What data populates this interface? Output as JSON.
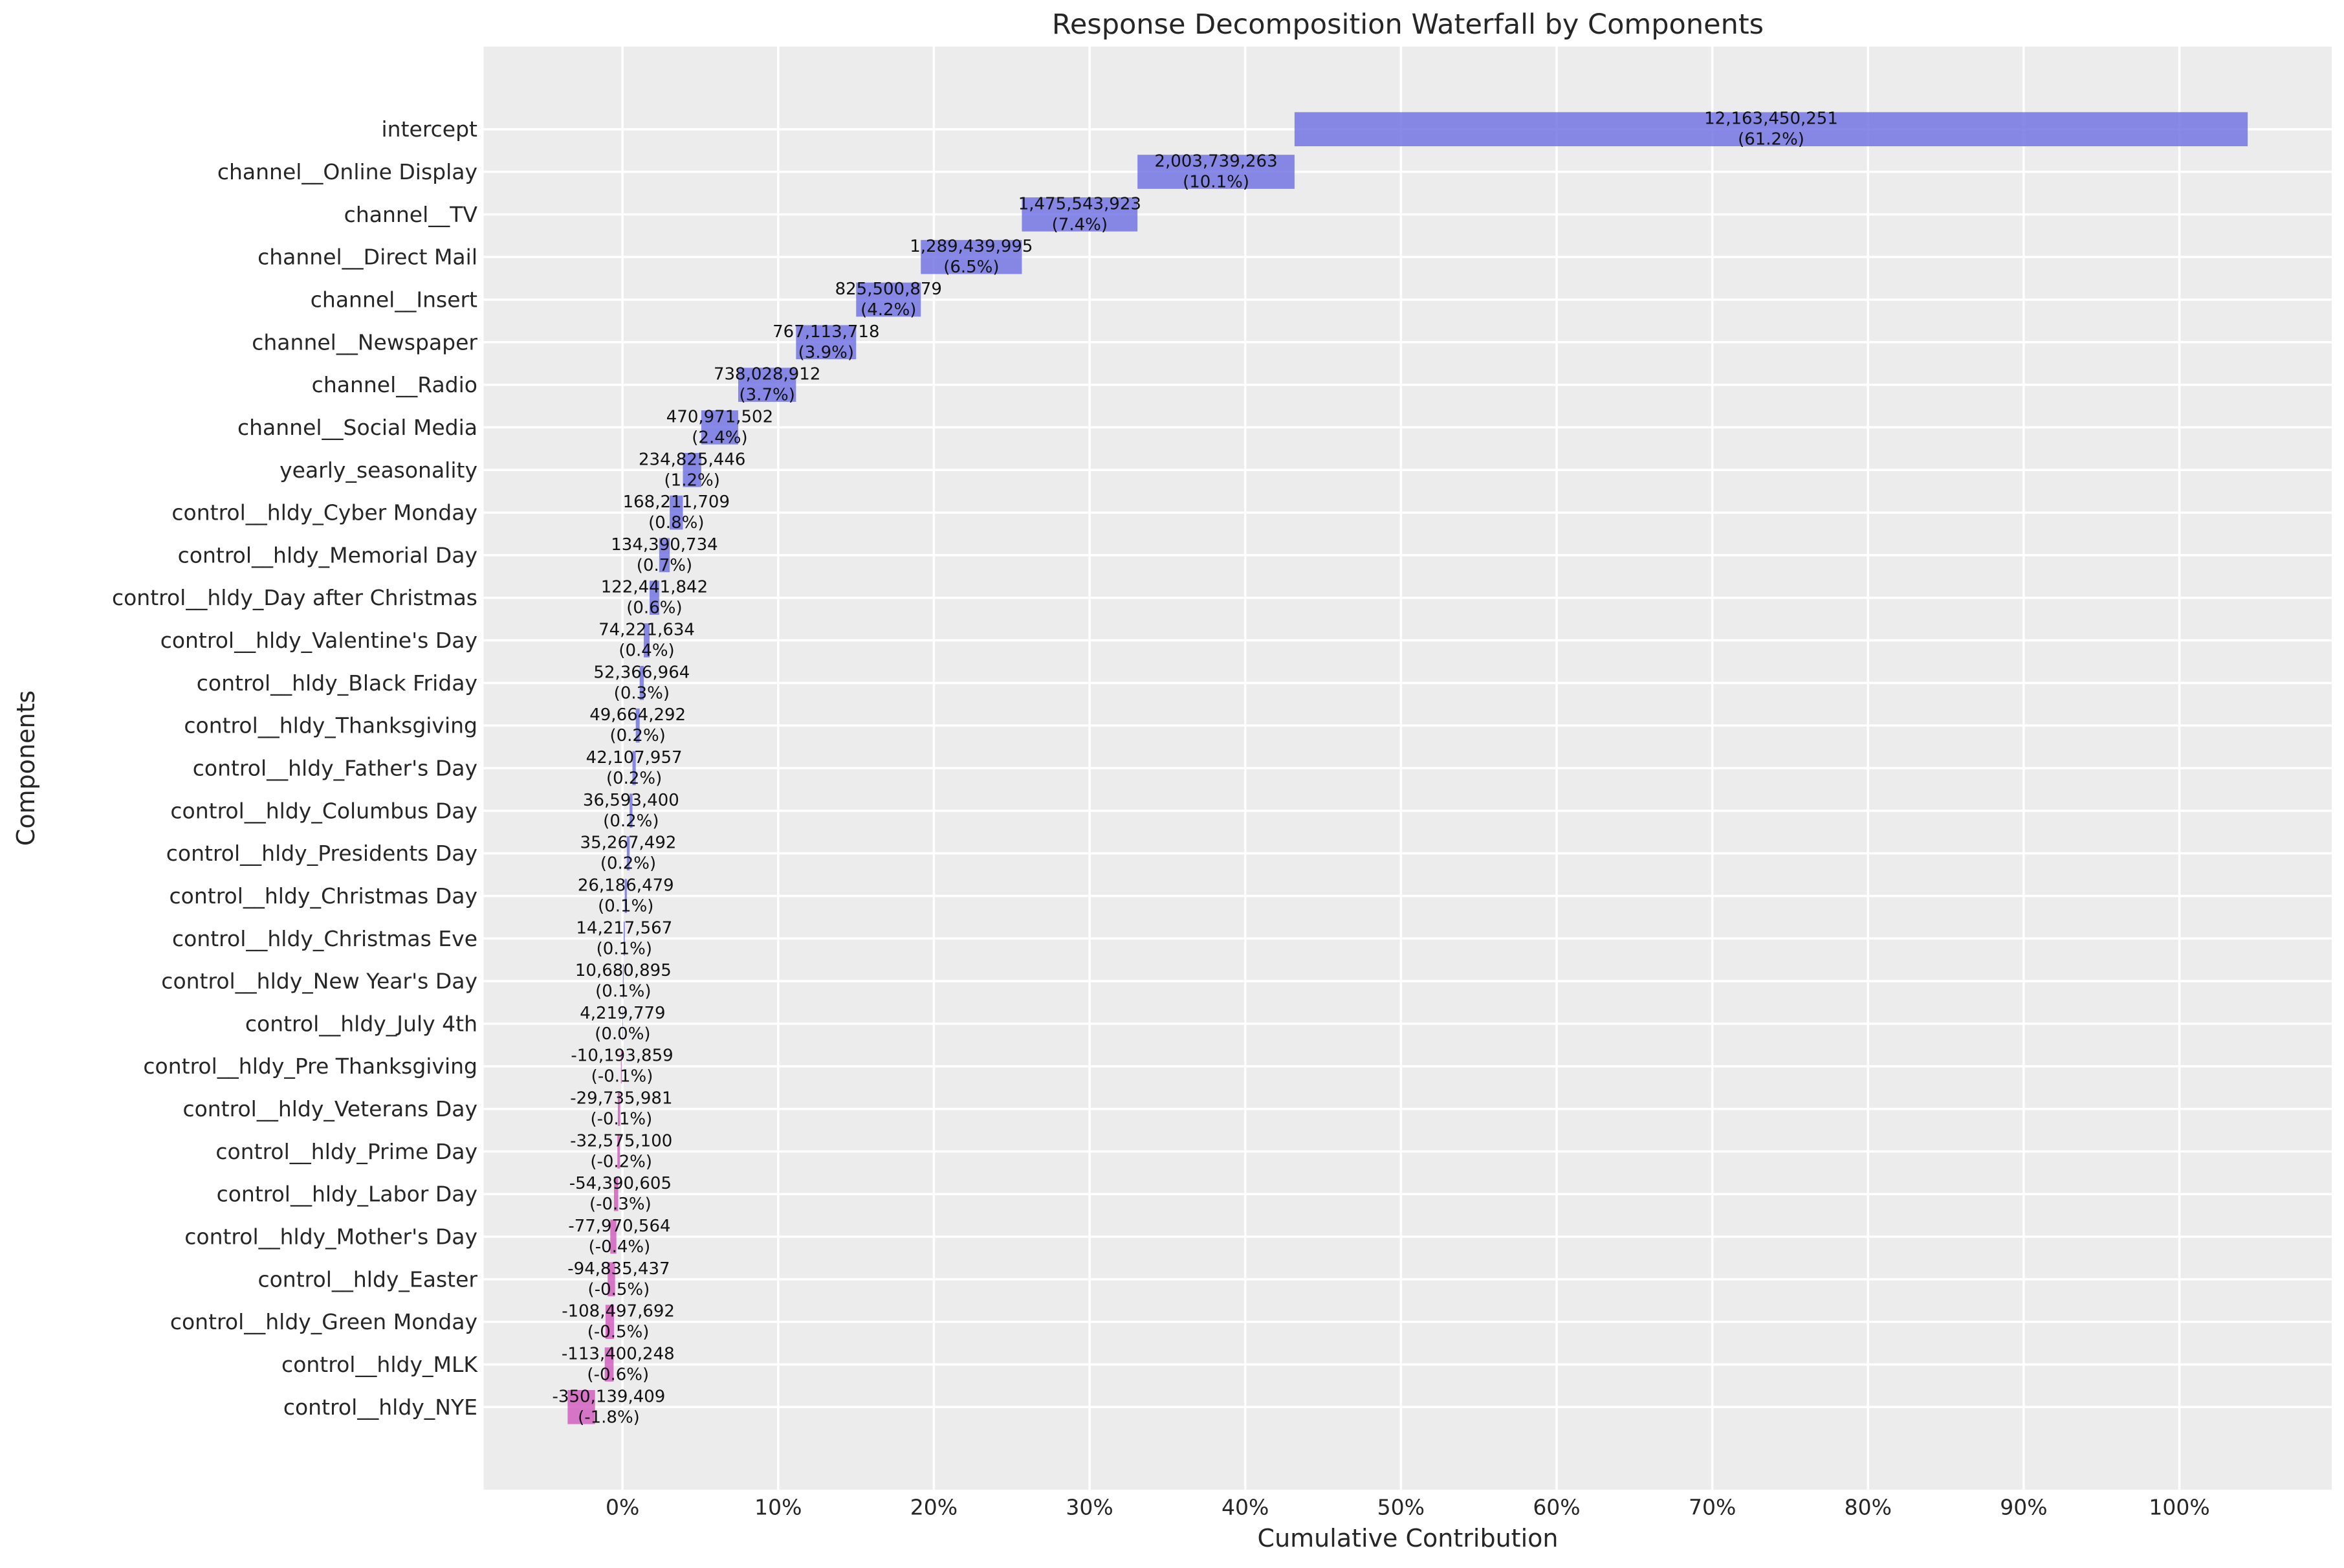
{
  "chart_data": {
    "type": "bar",
    "variant": "waterfall",
    "orientation": "horizontal",
    "title": "Response Decomposition Waterfall by Components",
    "xlabel": "Cumulative Contribution",
    "ylabel": "Components",
    "grid": true,
    "legend": false,
    "x_tick_values": [
      0,
      10,
      20,
      30,
      40,
      50,
      60,
      70,
      80,
      90,
      100
    ],
    "x_tick_labels": [
      "0%",
      "10%",
      "20%",
      "30%",
      "40%",
      "50%",
      "60%",
      "70%",
      "80%",
      "90%",
      "100%"
    ],
    "categories": [
      "intercept",
      "channel__Online Display",
      "channel__TV",
      "channel__Direct Mail",
      "channel__Insert",
      "channel__Newspaper",
      "channel__Radio",
      "channel__Social Media",
      "yearly_seasonality",
      "control__hldy_Cyber Monday",
      "control__hldy_Memorial Day",
      "control__hldy_Day after Christmas",
      "control__hldy_Valentine's Day",
      "control__hldy_Black Friday",
      "control__hldy_Thanksgiving",
      "control__hldy_Father's Day",
      "control__hldy_Columbus Day",
      "control__hldy_Presidents Day",
      "control__hldy_Christmas Day",
      "control__hldy_Christmas Eve",
      "control__hldy_New Year's Day",
      "control__hldy_July 4th",
      "control__hldy_Pre Thanksgiving",
      "control__hldy_Veterans Day",
      "control__hldy_Prime Day",
      "control__hldy_Labor Day",
      "control__hldy_Mother's Day",
      "control__hldy_Easter",
      "control__hldy_Green Monday",
      "control__hldy_MLK",
      "control__hldy_NYE"
    ],
    "values": [
      12163450251,
      2003739263,
      1475543923,
      1289439995,
      825500879,
      767113718,
      738028912,
      470971502,
      234825446,
      168211709,
      134390734,
      122441842,
      74221634,
      52366964,
      49664292,
      42107957,
      36593400,
      35267492,
      26186479,
      14217567,
      10680895,
      4219779,
      -10193859,
      -29735981,
      -32575100,
      -54390605,
      -77970564,
      -94835437,
      -108497692,
      -113400248,
      -350139409
    ],
    "pct_shown": [
      61.2,
      10.1,
      7.4,
      6.5,
      4.2,
      3.9,
      3.7,
      2.4,
      1.2,
      0.8,
      0.7,
      0.6,
      0.4,
      0.3,
      0.2,
      0.2,
      0.2,
      0.2,
      0.1,
      0.1,
      0.1,
      0.0,
      -0.1,
      -0.1,
      -0.2,
      -0.3,
      -0.4,
      -0.5,
      -0.5,
      -0.6,
      -1.8
    ],
    "colors": {
      "positive_bar": "#7476E4",
      "negative_bar": "#D260C0",
      "bar_opacity": 0.85,
      "plot_background": "#ECECEC",
      "figure_background": "#FFFFFF",
      "gridline": "#FFFFFF",
      "text": "#262626",
      "bar_label_text": "#111111"
    }
  }
}
